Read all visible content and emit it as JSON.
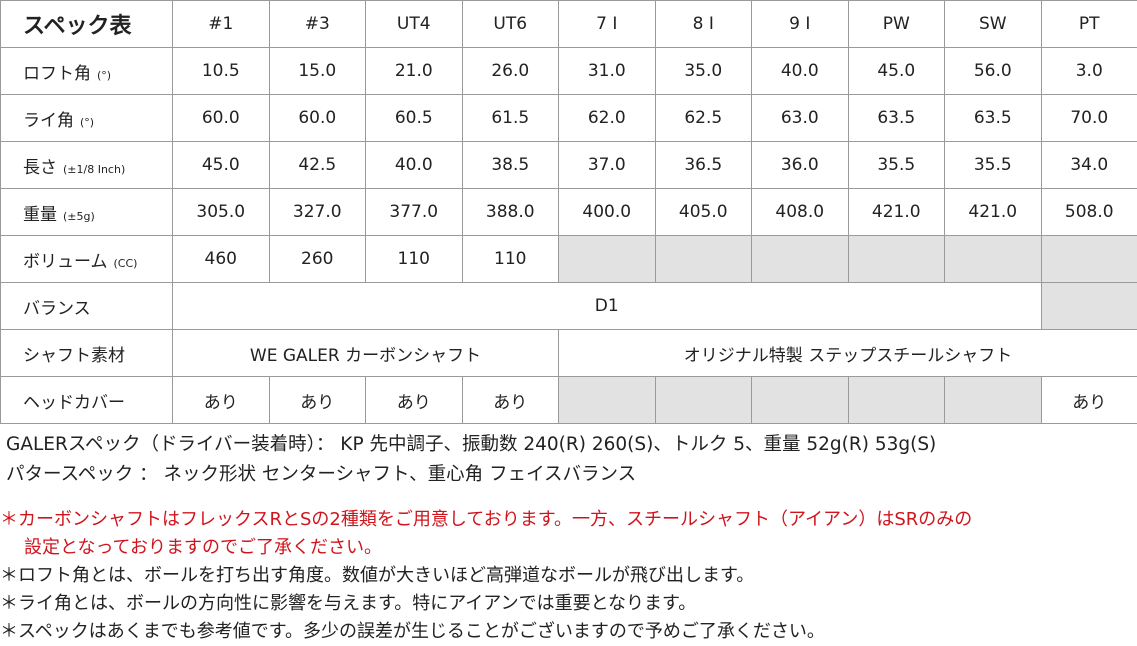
{
  "table": {
    "title": "スペック表",
    "columns": [
      "#1",
      "#3",
      "UT4",
      "UT6",
      "7 I",
      "8 I",
      "9 I",
      "PW",
      "SW",
      "PT"
    ],
    "rows": [
      {
        "label": "ロフト角",
        "unit": "(°)",
        "values": [
          "10.5",
          "15.0",
          "21.0",
          "26.0",
          "31.0",
          "35.0",
          "40.0",
          "45.0",
          "56.0",
          "3.0"
        ]
      },
      {
        "label": "ライ角",
        "unit": "(°)",
        "values": [
          "60.0",
          "60.0",
          "60.5",
          "61.5",
          "62.0",
          "62.5",
          "63.0",
          "63.5",
          "63.5",
          "70.0"
        ]
      },
      {
        "label": "長さ",
        "unit": "(±1/8 Inch)",
        "values": [
          "45.0",
          "42.5",
          "40.0",
          "38.5",
          "37.0",
          "36.5",
          "36.0",
          "35.5",
          "35.5",
          "34.0"
        ]
      },
      {
        "label": "重量",
        "unit": "(±5g)",
        "values": [
          "305.0",
          "327.0",
          "377.0",
          "388.0",
          "400.0",
          "405.0",
          "408.0",
          "421.0",
          "421.0",
          "508.0"
        ]
      },
      {
        "label": "ボリューム",
        "unit": "(CC)",
        "values": [
          "460",
          "260",
          "110",
          "110"
        ]
      }
    ],
    "balance": {
      "label": "バランス",
      "value": "D1"
    },
    "shaft": {
      "label": "シャフト素材",
      "carbon": "WE GALER カーボンシャフト",
      "steel": "オリジナル特製 ステップスチールシャフト"
    },
    "headcover": {
      "label": "ヘッドカバー",
      "values": [
        "あり",
        "あり",
        "あり",
        "あり",
        "あり"
      ]
    }
  },
  "specs": [
    "GALERスペック（ドライバー装着時）： KP 先中調子、振動数 240(R) 260(S)、トルク 5、重量 52g(R) 53g(S)",
    "パタースペック ： ネック形状 センターシャフト、重心角 フェイスバランス"
  ],
  "notes": {
    "bullet": "＊",
    "red_line1": "カーボンシャフトはフレックスRとSの2種類をご用意しております。一方、スチールシャフト（アイアン）はSRのみの",
    "red_line2": "設定となっておりますのでご了承ください。",
    "items": [
      "ロフト角とは、ボールを打ち出す角度。数値が大きいほど高弾道なボールが飛び出します。",
      "ライ角とは、ボールの方向性に影響を与えます。特にアイアンでは重要となります。",
      "スペックはあくまでも参考値です。多少の誤差が生じることがございますので予めご了承ください。"
    ],
    "red_color": "#d0141c"
  }
}
